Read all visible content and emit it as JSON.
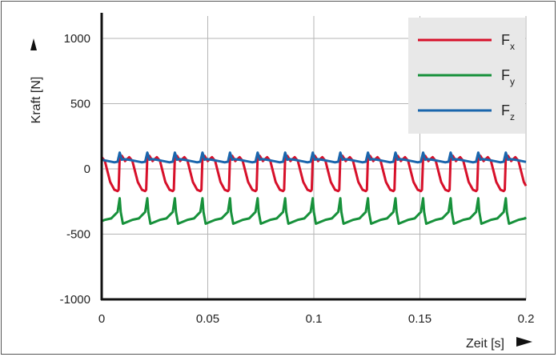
{
  "chart_data": {
    "type": "line",
    "title": "",
    "xlabel": "Zeit [s]",
    "ylabel": "Kraft [N]",
    "xlim": [
      0,
      0.2
    ],
    "ylim": [
      -1000,
      1000
    ],
    "xticks": [
      "0",
      "0.05",
      "0.1",
      "0.15",
      "0.2"
    ],
    "yticks": [
      "1000",
      "500",
      "0",
      "-500",
      "-1000"
    ],
    "grid": true,
    "legend_position": "top-right",
    "period_s": 0.013,
    "series": [
      {
        "name": "Fx",
        "symbol": "F",
        "subscript": "x",
        "color": "#d7102a",
        "x": [
          0,
          0.0015,
          0.004,
          0.006,
          0.0075,
          0.008,
          0.0085,
          0.0095,
          0.011,
          0.013
        ],
        "y": [
          90,
          60,
          -100,
          -160,
          -170,
          -160,
          90,
          100,
          60,
          90
        ]
      },
      {
        "name": "Fy",
        "symbol": "F",
        "subscript": "y",
        "color": "#17913b",
        "x": [
          0,
          0.0015,
          0.0045,
          0.0075,
          0.0085,
          0.009,
          0.01,
          0.013
        ],
        "y": [
          -400,
          -390,
          -380,
          -330,
          -225,
          -330,
          -420,
          -400
        ]
      },
      {
        "name": "Fz",
        "symbol": "F",
        "subscript": "z",
        "color": "#1a66ad",
        "x": [
          0,
          0.003,
          0.006,
          0.0075,
          0.0085,
          0.009,
          0.0095,
          0.0105,
          0.013
        ],
        "y": [
          70,
          60,
          50,
          55,
          125,
          100,
          70,
          75,
          70
        ]
      }
    ]
  }
}
